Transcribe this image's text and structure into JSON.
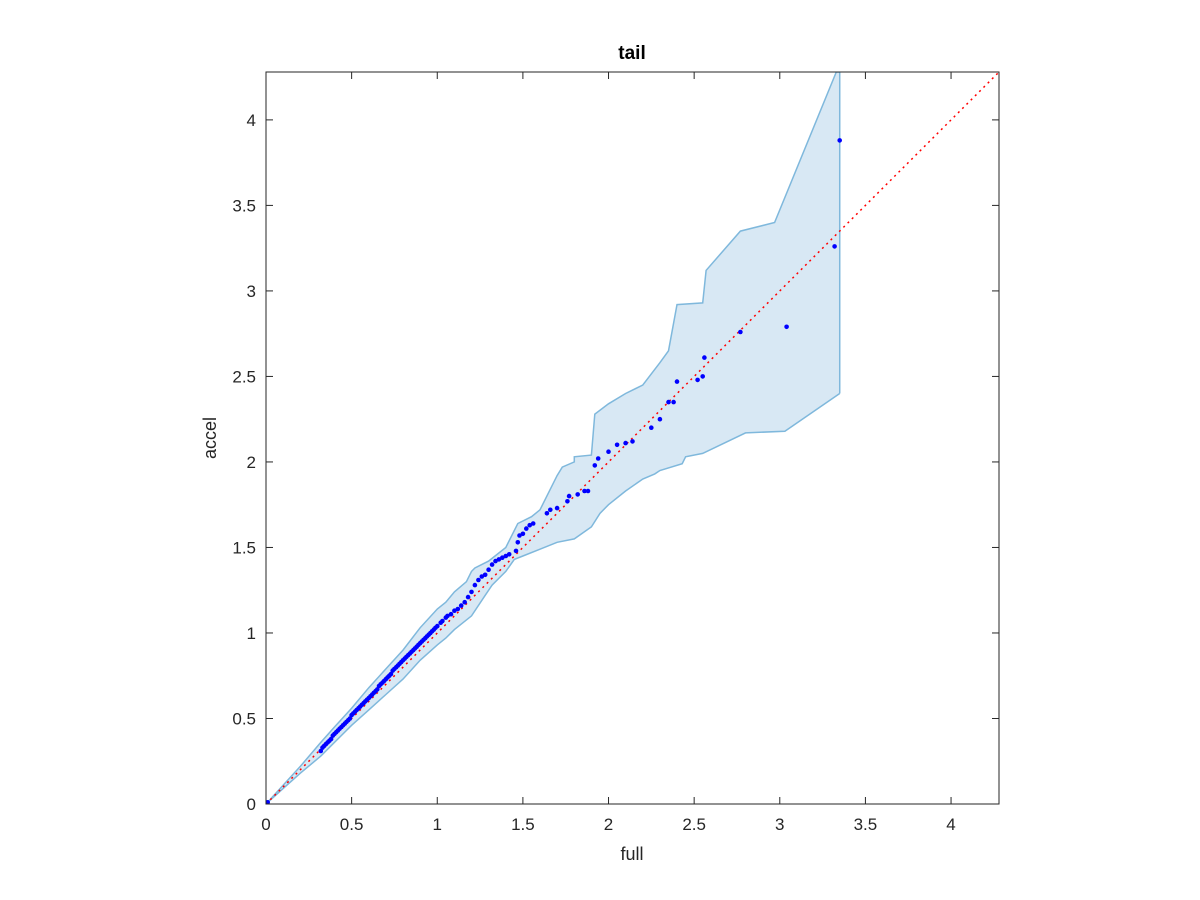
{
  "chart_data": {
    "type": "scatter",
    "title": "tail",
    "xlabel": "full",
    "ylabel": "accel",
    "xlim": [
      0,
      4.28
    ],
    "ylim": [
      0,
      4.28
    ],
    "xticks": [
      0,
      0.5,
      1,
      1.5,
      2,
      2.5,
      3,
      3.5,
      4
    ],
    "yticks": [
      0,
      0.5,
      1,
      1.5,
      2,
      2.5,
      3,
      3.5,
      4
    ],
    "xtick_labels": [
      "0",
      "0.5",
      "1",
      "1.5",
      "2",
      "2.5",
      "3",
      "3.5",
      "4"
    ],
    "ytick_labels": [
      "0",
      "0.5",
      "1",
      "1.5",
      "2",
      "2.5",
      "3",
      "3.5",
      "4"
    ],
    "grid": false,
    "reference_line": {
      "slope": 1,
      "intercept": 0,
      "color": "#ff0000",
      "style": "dotted"
    },
    "band": {
      "color": "#d8e8f4",
      "edge_color": "#7fb8dc",
      "upper": [
        [
          0,
          0
        ],
        [
          0.1,
          0.11
        ],
        [
          0.2,
          0.22
        ],
        [
          0.32,
          0.36
        ],
        [
          0.4,
          0.45
        ],
        [
          0.5,
          0.56
        ],
        [
          0.6,
          0.68
        ],
        [
          0.7,
          0.79
        ],
        [
          0.8,
          0.9
        ],
        [
          0.9,
          1.03
        ],
        [
          1.0,
          1.14
        ],
        [
          1.05,
          1.18
        ],
        [
          1.1,
          1.24
        ],
        [
          1.17,
          1.3
        ],
        [
          1.2,
          1.36
        ],
        [
          1.22,
          1.38
        ],
        [
          1.3,
          1.42
        ],
        [
          1.4,
          1.5
        ],
        [
          1.47,
          1.64
        ],
        [
          1.55,
          1.68
        ],
        [
          1.6,
          1.72
        ],
        [
          1.7,
          1.92
        ],
        [
          1.73,
          1.97
        ],
        [
          1.8,
          2.0
        ],
        [
          1.8,
          2.03
        ],
        [
          1.9,
          2.04
        ],
        [
          1.92,
          2.28
        ],
        [
          2.0,
          2.34
        ],
        [
          2.1,
          2.4
        ],
        [
          2.2,
          2.45
        ],
        [
          2.3,
          2.58
        ],
        [
          2.35,
          2.65
        ],
        [
          2.4,
          2.92
        ],
        [
          2.55,
          2.93
        ],
        [
          2.57,
          3.12
        ],
        [
          2.77,
          3.35
        ],
        [
          2.97,
          3.4
        ],
        [
          3.33,
          4.28
        ],
        [
          3.35,
          4.28
        ]
      ],
      "lower": [
        [
          0,
          0
        ],
        [
          0.1,
          0.09
        ],
        [
          0.2,
          0.18
        ],
        [
          0.32,
          0.28
        ],
        [
          0.4,
          0.36
        ],
        [
          0.5,
          0.46
        ],
        [
          0.6,
          0.55
        ],
        [
          0.7,
          0.64
        ],
        [
          0.8,
          0.73
        ],
        [
          0.9,
          0.84
        ],
        [
          1.0,
          0.93
        ],
        [
          1.05,
          0.97
        ],
        [
          1.1,
          1.02
        ],
        [
          1.2,
          1.1
        ],
        [
          1.28,
          1.22
        ],
        [
          1.32,
          1.28
        ],
        [
          1.4,
          1.36
        ],
        [
          1.45,
          1.43
        ],
        [
          1.5,
          1.45
        ],
        [
          1.6,
          1.49
        ],
        [
          1.7,
          1.53
        ],
        [
          1.8,
          1.55
        ],
        [
          1.9,
          1.62
        ],
        [
          1.95,
          1.7
        ],
        [
          2.0,
          1.75
        ],
        [
          2.1,
          1.83
        ],
        [
          2.2,
          1.9
        ],
        [
          2.27,
          1.93
        ],
        [
          2.3,
          1.95
        ],
        [
          2.43,
          1.99
        ],
        [
          2.45,
          2.03
        ],
        [
          2.55,
          2.05
        ],
        [
          2.8,
          2.17
        ],
        [
          3.03,
          2.18
        ],
        [
          3.35,
          2.4
        ]
      ]
    },
    "series": [
      {
        "color": "#0000ff",
        "points": [
          [
            0,
            0
          ],
          [
            0.01,
            0.01
          ],
          [
            0.32,
            0.31
          ],
          [
            0.33,
            0.33
          ],
          [
            0.34,
            0.34
          ],
          [
            0.35,
            0.35
          ],
          [
            0.36,
            0.36
          ],
          [
            0.37,
            0.37
          ],
          [
            0.38,
            0.38
          ],
          [
            0.39,
            0.4
          ],
          [
            0.4,
            0.41
          ],
          [
            0.41,
            0.42
          ],
          [
            0.42,
            0.43
          ],
          [
            0.43,
            0.44
          ],
          [
            0.44,
            0.45
          ],
          [
            0.45,
            0.46
          ],
          [
            0.46,
            0.47
          ],
          [
            0.47,
            0.48
          ],
          [
            0.48,
            0.49
          ],
          [
            0.49,
            0.5
          ],
          [
            0.5,
            0.52
          ],
          [
            0.51,
            0.53
          ],
          [
            0.52,
            0.54
          ],
          [
            0.53,
            0.55
          ],
          [
            0.54,
            0.56
          ],
          [
            0.55,
            0.57
          ],
          [
            0.56,
            0.58
          ],
          [
            0.57,
            0.59
          ],
          [
            0.58,
            0.6
          ],
          [
            0.59,
            0.61
          ],
          [
            0.6,
            0.62
          ],
          [
            0.61,
            0.63
          ],
          [
            0.62,
            0.64
          ],
          [
            0.63,
            0.65
          ],
          [
            0.64,
            0.66
          ],
          [
            0.65,
            0.67
          ],
          [
            0.66,
            0.69
          ],
          [
            0.67,
            0.7
          ],
          [
            0.68,
            0.71
          ],
          [
            0.69,
            0.72
          ],
          [
            0.7,
            0.73
          ],
          [
            0.71,
            0.74
          ],
          [
            0.72,
            0.75
          ],
          [
            0.73,
            0.76
          ],
          [
            0.74,
            0.78
          ],
          [
            0.75,
            0.79
          ],
          [
            0.76,
            0.8
          ],
          [
            0.77,
            0.81
          ],
          [
            0.78,
            0.82
          ],
          [
            0.79,
            0.83
          ],
          [
            0.8,
            0.84
          ],
          [
            0.81,
            0.85
          ],
          [
            0.82,
            0.86
          ],
          [
            0.83,
            0.87
          ],
          [
            0.84,
            0.88
          ],
          [
            0.85,
            0.89
          ],
          [
            0.86,
            0.9
          ],
          [
            0.87,
            0.91
          ],
          [
            0.88,
            0.92
          ],
          [
            0.89,
            0.93
          ],
          [
            0.9,
            0.94
          ],
          [
            0.91,
            0.95
          ],
          [
            0.92,
            0.96
          ],
          [
            0.93,
            0.97
          ],
          [
            0.94,
            0.98
          ],
          [
            0.95,
            0.99
          ],
          [
            0.96,
            1.0
          ],
          [
            0.97,
            1.01
          ],
          [
            0.98,
            1.02
          ],
          [
            0.99,
            1.03
          ],
          [
            1.0,
            1.04
          ],
          [
            1.02,
            1.06
          ],
          [
            1.03,
            1.07
          ],
          [
            1.05,
            1.09
          ],
          [
            1.06,
            1.1
          ],
          [
            1.08,
            1.11
          ],
          [
            1.1,
            1.13
          ],
          [
            1.12,
            1.14
          ],
          [
            1.14,
            1.16
          ],
          [
            1.16,
            1.18
          ],
          [
            1.18,
            1.21
          ],
          [
            1.2,
            1.24
          ],
          [
            1.22,
            1.28
          ],
          [
            1.24,
            1.31
          ],
          [
            1.26,
            1.33
          ],
          [
            1.28,
            1.34
          ],
          [
            1.3,
            1.37
          ],
          [
            1.32,
            1.4
          ],
          [
            1.34,
            1.42
          ],
          [
            1.36,
            1.43
          ],
          [
            1.38,
            1.44
          ],
          [
            1.4,
            1.45
          ],
          [
            1.42,
            1.46
          ],
          [
            1.46,
            1.48
          ],
          [
            1.47,
            1.53
          ],
          [
            1.48,
            1.57
          ],
          [
            1.5,
            1.58
          ],
          [
            1.52,
            1.61
          ],
          [
            1.54,
            1.63
          ],
          [
            1.56,
            1.64
          ],
          [
            1.64,
            1.7
          ],
          [
            1.66,
            1.72
          ],
          [
            1.7,
            1.73
          ],
          [
            1.76,
            1.77
          ],
          [
            1.77,
            1.8
          ],
          [
            1.82,
            1.81
          ],
          [
            1.86,
            1.83
          ],
          [
            1.88,
            1.83
          ],
          [
            1.92,
            1.98
          ],
          [
            1.94,
            2.02
          ],
          [
            2.0,
            2.06
          ],
          [
            2.05,
            2.1
          ],
          [
            2.1,
            2.11
          ],
          [
            2.14,
            2.12
          ],
          [
            2.25,
            2.2
          ],
          [
            2.3,
            2.25
          ],
          [
            2.35,
            2.35
          ],
          [
            2.38,
            2.35
          ],
          [
            2.4,
            2.47
          ],
          [
            2.52,
            2.48
          ],
          [
            2.55,
            2.5
          ],
          [
            2.56,
            2.61
          ],
          [
            2.77,
            2.76
          ],
          [
            3.04,
            2.79
          ],
          [
            3.32,
            3.26
          ],
          [
            3.35,
            3.88
          ]
        ]
      }
    ]
  }
}
